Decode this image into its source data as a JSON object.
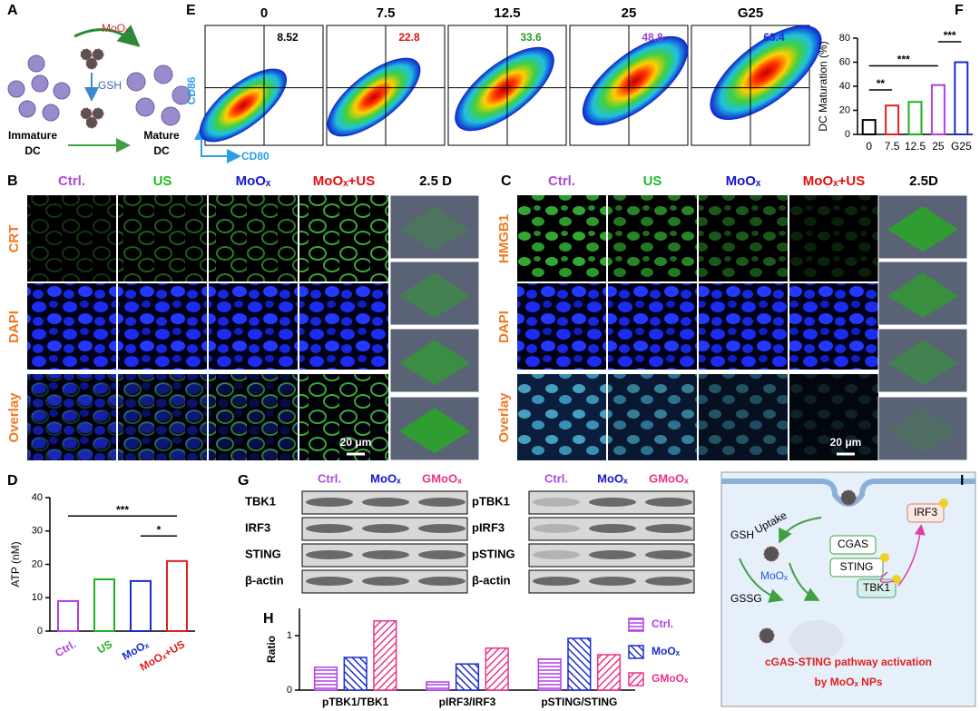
{
  "panel_letters": [
    "A",
    "B",
    "C",
    "D",
    "E",
    "F",
    "G",
    "H",
    "I"
  ],
  "panel_a": {
    "reagent": "MoOₓ",
    "reductant": "GSH",
    "immature": [
      "Immature",
      "DC"
    ],
    "mature": [
      "Mature",
      "DC"
    ]
  },
  "panel_e": {
    "concentrations": [
      "0",
      "7.5",
      "12.5",
      "25",
      "G25"
    ],
    "percentages": [
      "8.52",
      "22.8",
      "33.6",
      "48.8",
      "63.4"
    ],
    "x_axis": "CD80",
    "y_axis": "CD86"
  },
  "panel_b": {
    "columns": [
      "Ctrl.",
      "US",
      "MoOₓ",
      "MoOₓ+US",
      "2.5 D"
    ],
    "rows": [
      "CRT",
      "DAPI",
      "Overlay"
    ],
    "scale_bar": "20 μm"
  },
  "panel_c": {
    "columns": [
      "Ctrl.",
      "US",
      "MoOₓ",
      "MoOₓ+US",
      "2.5D"
    ],
    "rows": [
      "HMGB1",
      "DAPI",
      "Overlay"
    ],
    "scale_bar": "20 μm"
  },
  "panel_g": {
    "left_lanes": [
      "Ctrl.",
      "MoOₓ",
      "GMoOₓ"
    ],
    "right_lanes": [
      "Ctrl.",
      "MoOₓ",
      "GMoOₓ"
    ],
    "left_proteins": [
      "TBK1",
      "IRF3",
      "STING",
      "β-actin"
    ],
    "right_proteins": [
      "pTBK1",
      "pIRF3",
      "pSTING",
      "β-actin"
    ]
  },
  "panel_i": {
    "uptake": "Uptake",
    "gsh": "GSH",
    "gssg": "GSSG",
    "particle": "MoOₓ",
    "cgas": "CGAS",
    "sting": "STING",
    "tbk1": "TBK1",
    "irf3": "IRF3",
    "caption": [
      "cGAS-STING pathway activation",
      "by MoOₓ NPs"
    ]
  },
  "chart_data": [
    {
      "type": "bar",
      "ylabel": "DC Maturation (%)",
      "categories": [
        "0",
        "7.5",
        "12.5",
        "25",
        "G25"
      ],
      "values": [
        12,
        24,
        27,
        41,
        60
      ],
      "colors": [
        "#000000",
        "#e02020",
        "#20b020",
        "#b040e0",
        "#1a2ccc"
      ],
      "ylim": [
        0,
        80
      ],
      "yticks": [
        0,
        20,
        40,
        60,
        80
      ],
      "annotations": [
        "**",
        "***",
        "***"
      ]
    },
    {
      "type": "bar",
      "ylabel": "ATP (nM)",
      "categories": [
        "Ctrl.",
        "US",
        "MoOₓ",
        "MoOₓ+US"
      ],
      "values": [
        9,
        15.5,
        15,
        21
      ],
      "colors": [
        "#b040e0",
        "#20b020",
        "#1a2ccc",
        "#e02020"
      ],
      "ylim": [
        0,
        40
      ],
      "yticks": [
        0,
        10,
        20,
        30,
        40
      ],
      "annotations": [
        "***",
        "*"
      ]
    },
    {
      "type": "grouped_bar",
      "ylabel": "Ratio",
      "categories": [
        "pTBK1/TBK1",
        "pIRF3/IRF3",
        "pSTING/STING"
      ],
      "series": [
        {
          "name": "Ctrl.",
          "color": "#b040e0",
          "hatch": "horizontal",
          "values": [
            0.42,
            0.15,
            0.57
          ]
        },
        {
          "name": "MoOₓ",
          "color": "#1a2ccc",
          "hatch": "backslash",
          "values": [
            0.6,
            0.48,
            0.95
          ]
        },
        {
          "name": "GMoOₓ",
          "color": "#e8348a",
          "hatch": "slash",
          "values": [
            1.27,
            0.77,
            0.65
          ]
        }
      ],
      "ylim": [
        0,
        1.5
      ],
      "yticks": [
        0,
        1
      ]
    }
  ]
}
